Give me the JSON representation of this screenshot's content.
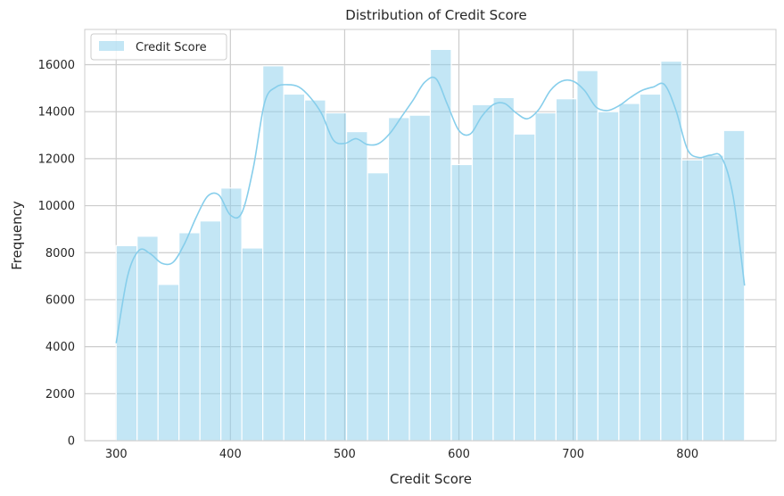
{
  "chart_data": {
    "type": "bar",
    "title": "Distribution of Credit Score",
    "xlabel": "Credit Score",
    "ylabel": "Frequency",
    "xlim": [
      272.5,
      877.5
    ],
    "ylim": [
      0,
      17500
    ],
    "x_ticks": [
      300,
      400,
      500,
      600,
      700,
      800
    ],
    "y_ticks": [
      0,
      2000,
      4000,
      6000,
      8000,
      10000,
      12000,
      14000,
      16000
    ],
    "bin_edges": [
      300,
      318.33,
      336.67,
      355,
      373.33,
      391.67,
      410,
      428.33,
      446.67,
      465,
      483.33,
      501.67,
      520,
      538.33,
      556.67,
      575,
      593.33,
      611.67,
      630,
      648.33,
      666.67,
      685,
      703.33,
      721.67,
      740,
      758.33,
      776.67,
      795,
      813.33,
      831.67,
      850
    ],
    "values": [
      8300,
      8700,
      6650,
      8850,
      9350,
      10750,
      8200,
      15950,
      14750,
      14500,
      13950,
      13150,
      11400,
      13750,
      13850,
      16650,
      11750,
      14300,
      14600,
      13050,
      13950,
      14550,
      15750,
      14000,
      14350,
      14750,
      16150,
      11950,
      12150,
      13200
    ],
    "kde": {
      "x": [
        300,
        310,
        320,
        330,
        340,
        350,
        360,
        370,
        380,
        390,
        400,
        410,
        420,
        430,
        440,
        450,
        460,
        470,
        480,
        490,
        500,
        510,
        520,
        530,
        540,
        550,
        560,
        570,
        580,
        590,
        600,
        610,
        620,
        630,
        640,
        650,
        660,
        670,
        680,
        690,
        700,
        710,
        720,
        730,
        740,
        750,
        760,
        770,
        780,
        790,
        800,
        810,
        820,
        830,
        840,
        850
      ],
      "y": [
        4150,
        7000,
        8100,
        7950,
        7550,
        7600,
        8400,
        9500,
        10400,
        10450,
        9600,
        9700,
        11600,
        14400,
        15050,
        15150,
        15050,
        14600,
        13900,
        12800,
        12650,
        12850,
        12600,
        12650,
        13100,
        13800,
        14500,
        15250,
        15400,
        14300,
        13200,
        13050,
        13800,
        14300,
        14350,
        13950,
        13700,
        14100,
        14900,
        15300,
        15300,
        14900,
        14200,
        14050,
        14250,
        14600,
        14900,
        15050,
        15150,
        14050,
        12400,
        12050,
        12150,
        12050,
        10400,
        6600
      ]
    },
    "series": [
      {
        "name": "Credit Score"
      }
    ],
    "grid": true,
    "legend_position": "top-left",
    "colors": {
      "bar": "#87ceeb",
      "bar_opacity": 0.5,
      "kde": "#87ceeb",
      "grid": "#cccccc",
      "axis": "#cccccc"
    }
  }
}
